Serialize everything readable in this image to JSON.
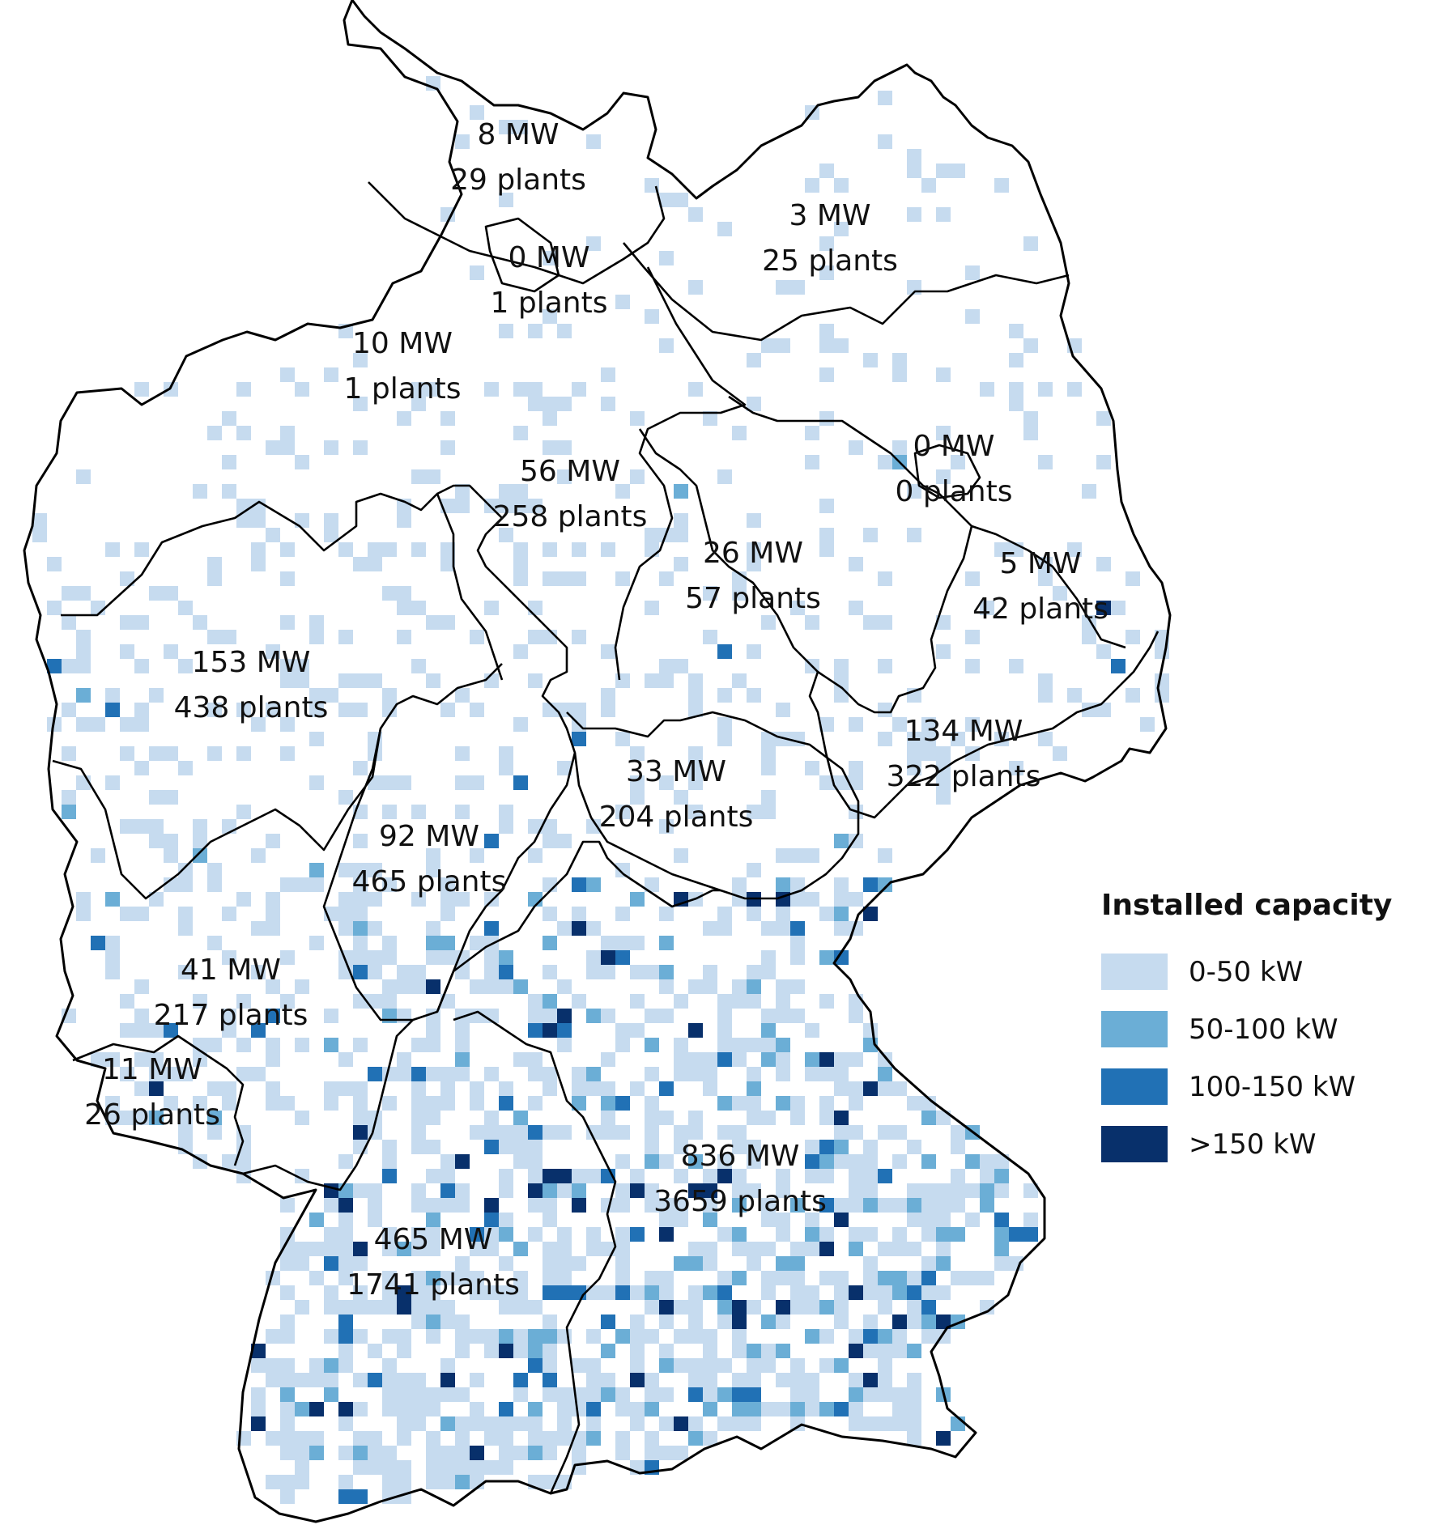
{
  "regions": [
    {
      "id": "schleswig-holstein",
      "capacity": "8 MW",
      "plants": "29 plants"
    },
    {
      "id": "mecklenburg-vorpommern",
      "capacity": "3 MW",
      "plants": "25 plants"
    },
    {
      "id": "hamburg",
      "capacity": "0 MW",
      "plants": "1 plants"
    },
    {
      "id": "bremen",
      "capacity": "10 MW",
      "plants": "1 plants"
    },
    {
      "id": "niedersachsen",
      "capacity": "56 MW",
      "plants": "258 plants"
    },
    {
      "id": "berlin",
      "capacity": "0 MW",
      "plants": "0 plants"
    },
    {
      "id": "brandenburg",
      "capacity": "5 MW",
      "plants": "42 plants"
    },
    {
      "id": "sachsen-anhalt",
      "capacity": "26 MW",
      "plants": "57 plants"
    },
    {
      "id": "nordrhein-westfalen",
      "capacity": "153 MW",
      "plants": "438 plants"
    },
    {
      "id": "sachsen",
      "capacity": "134 MW",
      "plants": "322 plants"
    },
    {
      "id": "thueringen",
      "capacity": "33 MW",
      "plants": "204 plants"
    },
    {
      "id": "hessen",
      "capacity": "92 MW",
      "plants": "465 plants"
    },
    {
      "id": "rheinland-pfalz",
      "capacity": "41 MW",
      "plants": "217 plants"
    },
    {
      "id": "saarland",
      "capacity": "11 MW",
      "plants": "26 plants"
    },
    {
      "id": "bayern",
      "capacity": "836 MW",
      "plants": "3659 plants"
    },
    {
      "id": "baden-wuerttemberg",
      "capacity": "465 MW",
      "plants": "1741 plants"
    }
  ],
  "legend": {
    "title": "Installed capacity",
    "items": [
      {
        "label": "0-50 kW",
        "color": "#c6dbef"
      },
      {
        "label": "50-100 kW",
        "color": "#6baed6"
      },
      {
        "label": "100-150 kW",
        "color": "#2171b5"
      },
      {
        "label": ">150 kW",
        "color": "#08306b"
      }
    ]
  }
}
